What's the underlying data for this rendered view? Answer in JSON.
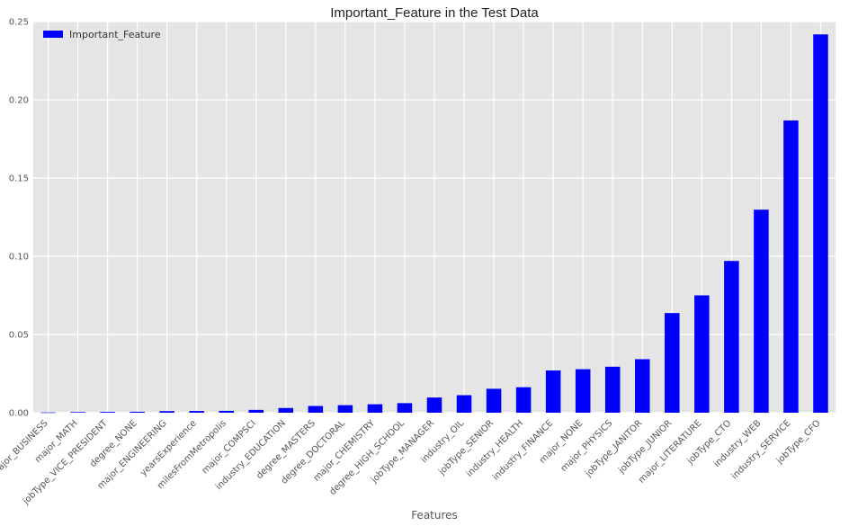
{
  "chart_data": {
    "type": "bar",
    "title": "Important_Feature in the Test Data",
    "xlabel": "Features",
    "ylabel": "",
    "ylim": [
      0,
      0.25
    ],
    "yticks": [
      0.0,
      0.05,
      0.1,
      0.15,
      0.2,
      0.25
    ],
    "ytick_labels": [
      "0.00",
      "0.05",
      "0.10",
      "0.15",
      "0.20",
      "0.25"
    ],
    "legend_position": "top-left",
    "grid": true,
    "colors": {
      "bar": "#0000ff",
      "background": "#e5e5e5",
      "grid": "#ffffff"
    },
    "categories": [
      "major_BUSINESS",
      "major_MATH",
      "jobType_VICE_PRESIDENT",
      "degree_NONE",
      "major_ENGINEERING",
      "yearsExperience",
      "milesFromMetropolis",
      "major_COMPSCI",
      "industry_EDUCATION",
      "degree_MASTERS",
      "degree_DOCTORAL",
      "major_CHEMISTRY",
      "degree_HIGH_SCHOOL",
      "jobType_MANAGER",
      "industry_OIL",
      "jobType_SENIOR",
      "industry_HEALTH",
      "industry_FINANCE",
      "major_NONE",
      "major_PHYSICS",
      "jobType_JANITOR",
      "jobType_JUNIOR",
      "major_LITERATURE",
      "jobType_CTO",
      "industry_WEB",
      "industry_SERVICE",
      "jobType_CFO"
    ],
    "series": [
      {
        "name": "Important_Feature",
        "values": [
          0.0002,
          0.0004,
          0.0005,
          0.0006,
          0.001,
          0.0011,
          0.0012,
          0.0018,
          0.003,
          0.0043,
          0.0048,
          0.0054,
          0.0061,
          0.0097,
          0.0112,
          0.0153,
          0.0163,
          0.027,
          0.0278,
          0.0294,
          0.0342,
          0.0637,
          0.075,
          0.097,
          0.1298,
          0.1868,
          0.2418
        ]
      }
    ]
  }
}
